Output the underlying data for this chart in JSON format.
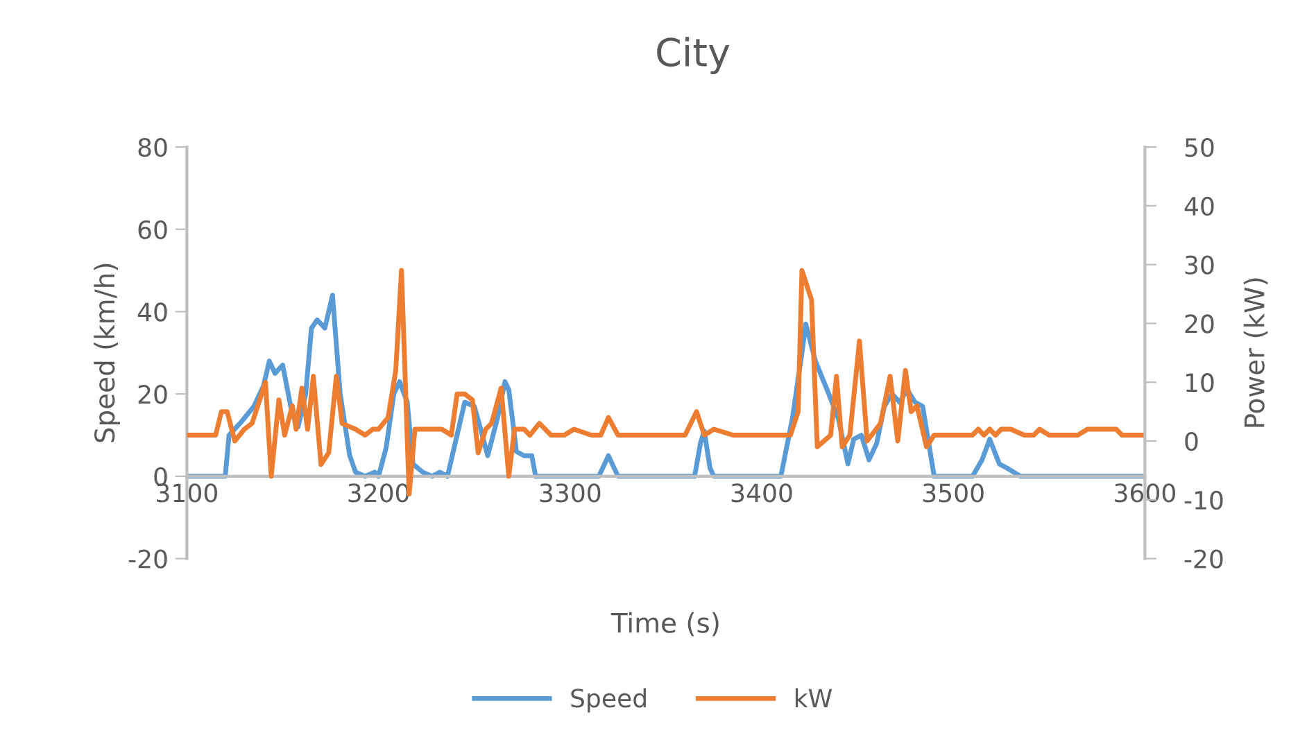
{
  "chart_data": {
    "type": "line",
    "title": "City",
    "xlabel": "Time (s)",
    "ylabel": "Speed (km/h)",
    "y2label": "Power (kW)",
    "xlim": [
      3100,
      3600
    ],
    "xticks": [
      3100,
      3200,
      3300,
      3400,
      3500,
      3600
    ],
    "ylim": [
      -20,
      80
    ],
    "yticks": [
      -20,
      0,
      20,
      40,
      60,
      80
    ],
    "y2lim": [
      -20,
      50
    ],
    "y2ticks": [
      -20,
      -10,
      0,
      10,
      20,
      30,
      40,
      50
    ],
    "grid": false,
    "legend": "bottom",
    "marker": "none",
    "line_style": "solid",
    "series": [
      {
        "name": "Speed",
        "color": "#5b9bd5",
        "x": [
          3100,
          3120,
          3122,
          3128,
          3135,
          3140,
          3143,
          3146,
          3150,
          3155,
          3158,
          3162,
          3165,
          3168,
          3172,
          3176,
          3180,
          3185,
          3188,
          3193,
          3198,
          3200,
          3204,
          3208,
          3211,
          3215,
          3218,
          3223,
          3228,
          3232,
          3236,
          3240,
          3245,
          3250,
          3253,
          3257,
          3262,
          3266,
          3268,
          3272,
          3276,
          3280,
          3282,
          3315,
          3320,
          3325,
          3365,
          3368,
          3370,
          3373,
          3375,
          3410,
          3416,
          3421,
          3423,
          3428,
          3435,
          3440,
          3445,
          3448,
          3452,
          3456,
          3460,
          3464,
          3468,
          3472,
          3476,
          3480,
          3484,
          3490,
          3510,
          3515,
          3519,
          3524,
          3528,
          3535,
          3600
        ],
        "values": [
          0,
          0,
          10,
          13,
          17,
          22,
          28,
          25,
          27,
          15,
          12,
          20,
          36,
          38,
          36,
          44,
          20,
          5,
          1,
          0,
          1,
          0,
          7,
          20,
          23,
          18,
          3,
          1,
          0,
          1,
          0,
          8,
          18,
          17,
          12,
          5,
          14,
          23,
          21,
          6,
          5,
          5,
          0,
          0,
          5,
          0,
          0,
          8,
          11,
          2,
          0,
          0,
          14,
          30,
          37,
          28,
          20,
          14,
          3,
          9,
          10,
          4,
          8,
          17,
          20,
          18,
          21,
          18,
          17,
          0,
          0,
          4,
          9,
          3,
          2,
          0,
          0
        ]
      },
      {
        "name": "kW",
        "color": "#ed7d31",
        "axis": "y2",
        "x": [
          3100,
          3115,
          3118,
          3121,
          3125,
          3130,
          3134,
          3141,
          3144,
          3148,
          3151,
          3155,
          3157,
          3160,
          3163,
          3166,
          3170,
          3174,
          3178,
          3181,
          3188,
          3193,
          3197,
          3200,
          3205,
          3209,
          3212,
          3216,
          3219,
          3228,
          3233,
          3238,
          3241,
          3245,
          3249,
          3252,
          3256,
          3259,
          3264,
          3268,
          3271,
          3276,
          3279,
          3284,
          3290,
          3297,
          3302,
          3311,
          3316,
          3320,
          3325,
          3330,
          3360,
          3366,
          3370,
          3375,
          3385,
          3395,
          3405,
          3415,
          3419,
          3421,
          3426,
          3429,
          3436,
          3439,
          3442,
          3446,
          3451,
          3455,
          3462,
          3467,
          3471,
          3475,
          3478,
          3481,
          3486,
          3490,
          3510,
          3513,
          3516,
          3519,
          3522,
          3525,
          3530,
          3537,
          3542,
          3545,
          3550,
          3565,
          3570,
          3585,
          3588,
          3600
        ],
        "values": [
          1,
          1,
          5,
          5,
          0,
          2,
          3,
          10,
          -6,
          7,
          1,
          6,
          2,
          9,
          2,
          11,
          -4,
          -2,
          11,
          3,
          2,
          1,
          2,
          2,
          4,
          12,
          29,
          -9,
          2,
          2,
          2,
          1,
          8,
          8,
          7,
          -2,
          2,
          3,
          9,
          -6,
          2,
          2,
          1,
          3,
          1,
          1,
          2,
          1,
          1,
          4,
          1,
          1,
          1,
          5,
          1,
          2,
          1,
          1,
          1,
          1,
          5,
          29,
          24,
          -1,
          1,
          11,
          -1,
          1,
          17,
          0,
          3,
          11,
          0,
          12,
          5,
          6,
          -1,
          1,
          1,
          2,
          1,
          2,
          1,
          2,
          2,
          1,
          1,
          2,
          1,
          1,
          2,
          2,
          1,
          1
        ]
      }
    ]
  }
}
